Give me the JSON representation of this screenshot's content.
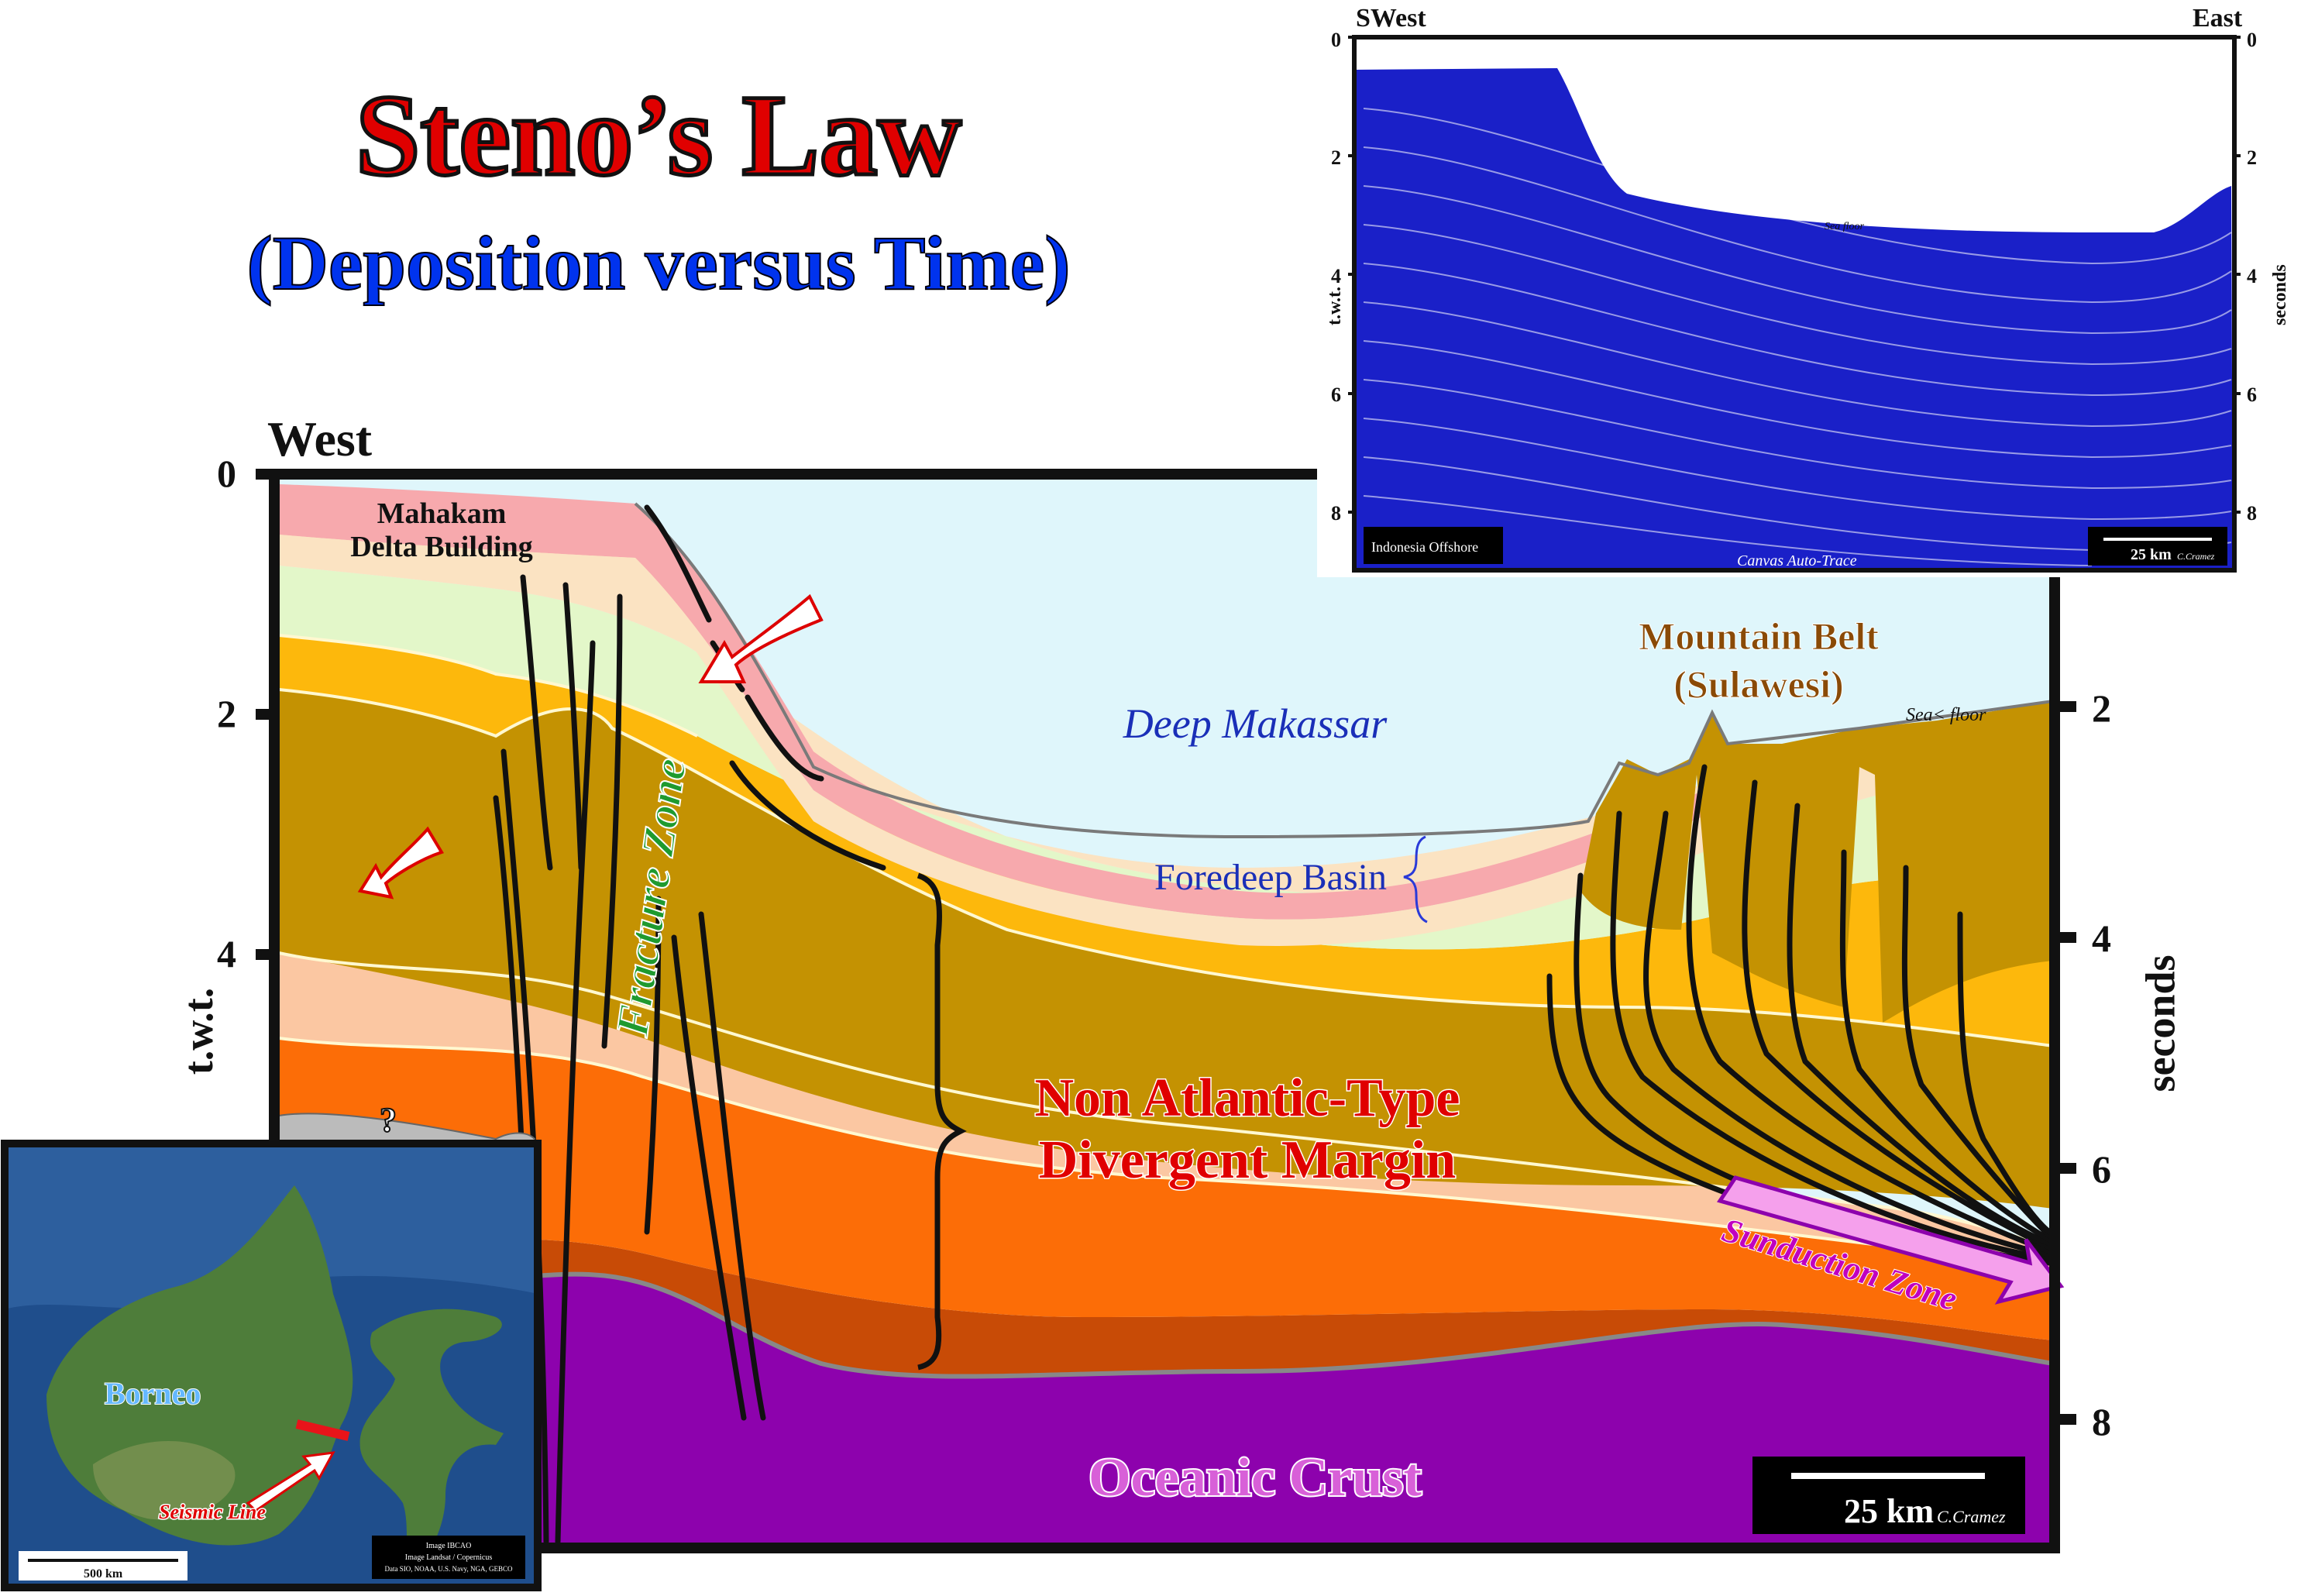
{
  "title": "Steno’s Law",
  "subtitle": "(Deposition versus Time)",
  "main_section": {
    "direction_left": "West",
    "axis_left_label": "t.w.t.",
    "axis_right_label": "seconds",
    "left_ticks": [
      "0",
      "2",
      "4"
    ],
    "right_ticks": [
      "2",
      "4",
      "6",
      "8"
    ],
    "labels": {
      "mahakam": [
        "Mahakam",
        "Delta Building"
      ],
      "fracture_zone": "Fracture Zone",
      "deep_makassar": "Deep Makassar",
      "foredeep_basin": "Foredeep Basin",
      "mountain_belt": [
        "Mountain Belt",
        "(Sulawesi)"
      ],
      "sea_floor": "Sea< floor",
      "margin": [
        "Non Atlantic-Type",
        "Divergent Margin"
      ],
      "subduction": "Sunduction Zone",
      "oceanic_crust": "Oceanic Crust",
      "question_mark": "?"
    },
    "scale_text": "25 km",
    "credit": "C.Cramez"
  },
  "seismic_inset": {
    "direction_left": "SWest",
    "direction_right": "East",
    "axis_left_label": "t.w.t.",
    "axis_right_label": "seconds",
    "left_ticks": [
      "0",
      "2",
      "4",
      "6",
      "8"
    ],
    "right_ticks": [
      "0",
      "2",
      "4",
      "6",
      "8"
    ],
    "sea_floor": "Sea floor",
    "location_label": "Indonesia Offshore",
    "canvas_label": "Canvas Auto-Trace",
    "scale_text": "25 km",
    "credit": "C.Cramez"
  },
  "map_inset": {
    "borneo": "Borneo",
    "seismic_line": "Seismic Line",
    "scale_text": "500 km",
    "attribution": [
      "Image IBCAO",
      "Image Landsat / Copernicus",
      "Data SIO, NOAA, U.S. Navy, NGA, GEBCO"
    ]
  },
  "colors": {
    "sky": "#dff6fb",
    "pink": "#f7a9ad",
    "cream": "#fbe3c2",
    "light_green": "#e3f7c9",
    "orange_yellow": "#fdb80c",
    "brown": "#c49202",
    "salmon": "#fbc7a2",
    "orange": "#fc6d07",
    "dark_orange": "#c84b06",
    "purple": "#8d02ad",
    "seismic_blue": "#1a20c8"
  }
}
